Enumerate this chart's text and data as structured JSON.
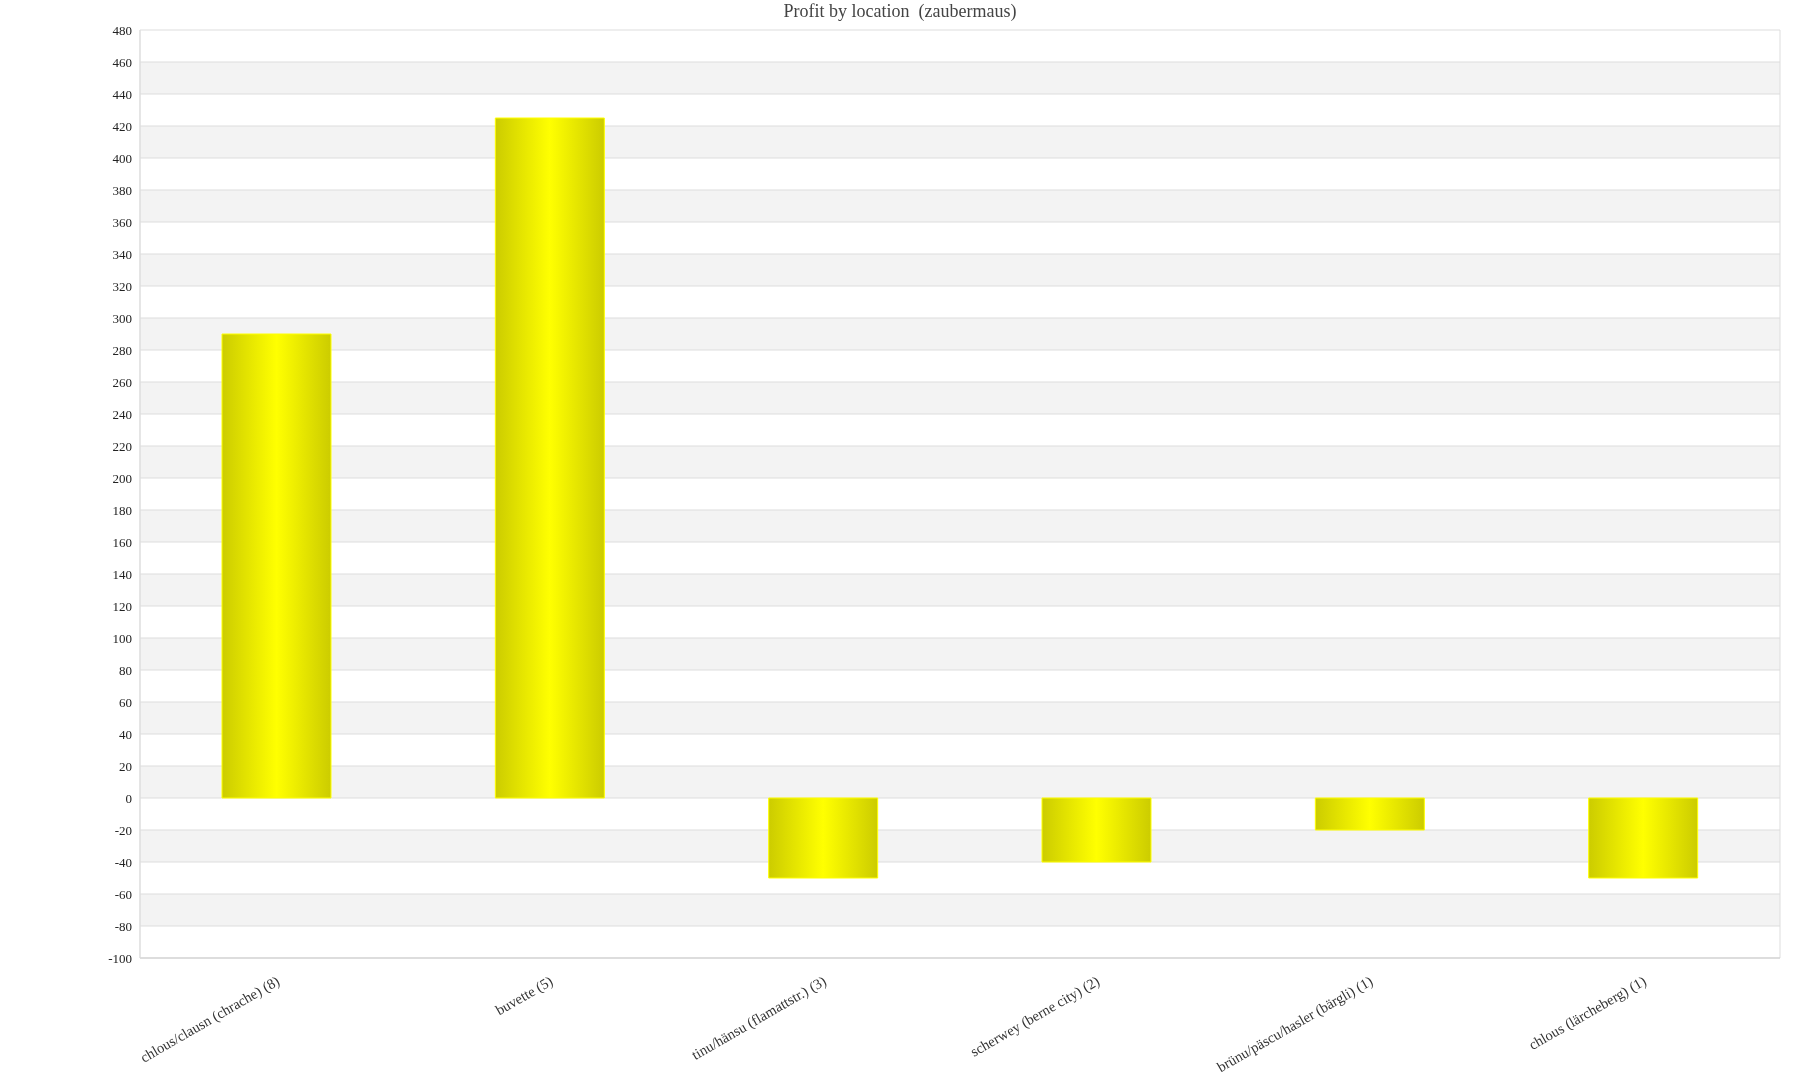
{
  "chart_data": {
    "type": "bar",
    "title": "Profit by location  (zaubermaus)",
    "categories": [
      "chlous/clausn (chrache) (8)",
      "buvette (5)",
      "tinu/hänsu (flamattstr.) (3)",
      "scherwey (berne city) (2)",
      "brünu/päscu/hasler (bärgli) (1)",
      "chlous (lärcheberg) (1)"
    ],
    "values": [
      290,
      425,
      -50,
      -40,
      -20,
      -50
    ],
    "color": "#ffff00",
    "ylim": [
      -100,
      480
    ],
    "yticks": [
      -100,
      -80,
      -60,
      -40,
      -20,
      0,
      20,
      40,
      60,
      80,
      100,
      120,
      140,
      160,
      180,
      200,
      220,
      240,
      260,
      280,
      300,
      320,
      340,
      360,
      380,
      400,
      420,
      440,
      460,
      480
    ],
    "grid": "y"
  }
}
